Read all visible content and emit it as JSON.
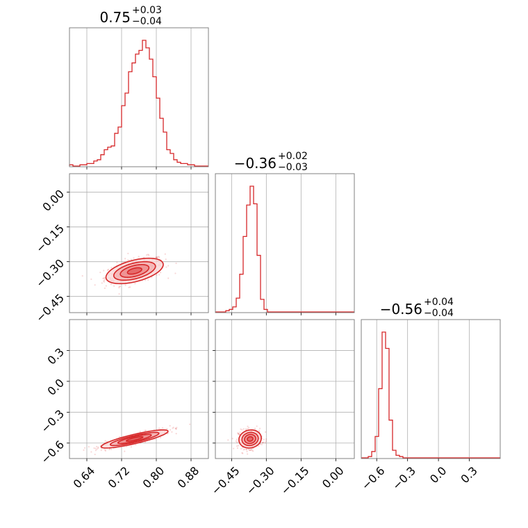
{
  "chart_data": {
    "type": "corner",
    "style": {
      "hist_color": "#d62728",
      "grid": true
    },
    "titles": [
      {
        "value": "0.75",
        "plus": "+0.03",
        "minus": "−0.04"
      },
      {
        "value": "−0.36",
        "plus": "+0.02",
        "minus": "−0.03"
      },
      {
        "value": "−0.56",
        "plus": "+0.04",
        "minus": "−0.04"
      }
    ],
    "params": [
      {
        "range": [
          0.6,
          0.92
        ],
        "ticks": [
          0.64,
          0.72,
          0.8,
          0.88
        ],
        "tick_labels": [
          "0.64",
          "0.72",
          "0.80",
          "0.88"
        ],
        "histogram": [
          0.01,
          0.0,
          0.0,
          0.01,
          0.01,
          0.02,
          0.02,
          0.04,
          0.05,
          0.09,
          0.13,
          0.15,
          0.16,
          0.26,
          0.31,
          0.48,
          0.58,
          0.75,
          0.82,
          0.89,
          0.92,
          1.0,
          0.94,
          0.85,
          0.71,
          0.54,
          0.38,
          0.27,
          0.13,
          0.1,
          0.05,
          0.03,
          0.02,
          0.02,
          0.01,
          0.01,
          0.0,
          0.0,
          0.0,
          0.0
        ]
      },
      {
        "range": [
          -0.52,
          0.08
        ],
        "ticks": [
          -0.45,
          -0.3,
          -0.15,
          0.0
        ],
        "tick_labels": [
          "−0.45",
          "−0.30",
          "−0.15",
          "0.00"
        ],
        "histogram": [
          0.0,
          0.0,
          0.0,
          0.01,
          0.02,
          0.04,
          0.11,
          0.3,
          0.6,
          0.85,
          1.0,
          0.86,
          0.45,
          0.1,
          0.02,
          0.0,
          0.0,
          0.0,
          0.0,
          0.0,
          0.0,
          0.0,
          0.0,
          0.0,
          0.0,
          0.0,
          0.0,
          0.0,
          0.0,
          0.0,
          0.0,
          0.0,
          0.0,
          0.0,
          0.0,
          0.0,
          0.0,
          0.0,
          0.0,
          0.0
        ]
      },
      {
        "range": [
          -0.75,
          0.6
        ],
        "ticks": [
          -0.6,
          -0.3,
          0.0,
          0.3
        ],
        "tick_labels": [
          "−0.6",
          "−0.3",
          "0.0",
          "0.3"
        ],
        "histogram": [
          0.0,
          0.0,
          0.01,
          0.05,
          0.17,
          0.55,
          1.0,
          0.87,
          0.3,
          0.06,
          0.02,
          0.01,
          0.0,
          0.0,
          0.0,
          0.0,
          0.0,
          0.0,
          0.0,
          0.0,
          0.0,
          0.0,
          0.0,
          0.0,
          0.0,
          0.0,
          0.0,
          0.0,
          0.0,
          0.0,
          0.0,
          0.0,
          0.0,
          0.0,
          0.0,
          0.0,
          0.0,
          0.0,
          0.0,
          0.0
        ]
      }
    ],
    "pairs": [
      {
        "x_param": 0,
        "y_param": 1,
        "center": [
          0.75,
          -0.34
        ],
        "spread": [
          0.03,
          0.025
        ],
        "correlation": 0.5
      },
      {
        "x_param": 0,
        "y_param": 2,
        "center": [
          0.75,
          -0.56
        ],
        "spread": [
          0.035,
          0.04
        ],
        "correlation": 0.85
      },
      {
        "x_param": 1,
        "y_param": 2,
        "center": [
          -0.37,
          -0.56
        ],
        "spread": [
          0.022,
          0.04
        ],
        "correlation": 0.1
      }
    ]
  }
}
